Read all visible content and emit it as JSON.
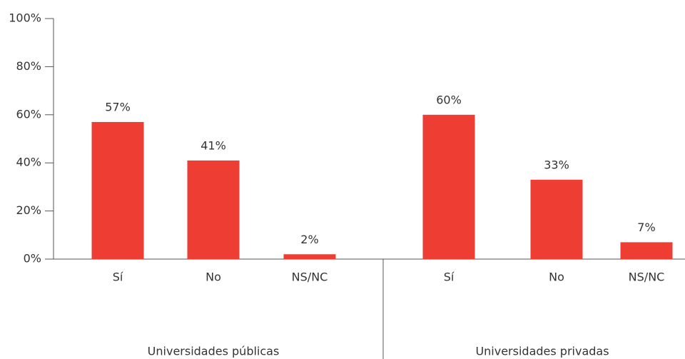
{
  "chart_data": {
    "type": "bar",
    "categories": [
      "Sí",
      "No",
      "NS/NC",
      "Sí",
      "No",
      "NS/NC"
    ],
    "groups": [
      "Universidades públicas",
      "Universidades privadas"
    ],
    "values": [
      57,
      41,
      2,
      60,
      33,
      7
    ],
    "value_labels": [
      "57%",
      "41%",
      "2%",
      "60%",
      "33%",
      "7%"
    ],
    "color": "#ee3e33",
    "ylim": [
      0,
      100
    ],
    "yticks": [
      {
        "value": 0,
        "label": "0%"
      },
      {
        "value": 20,
        "label": "20%"
      },
      {
        "value": 40,
        "label": "40%"
      },
      {
        "value": 60,
        "label": "60%"
      },
      {
        "value": 80,
        "label": "80%"
      },
      {
        "value": 100,
        "label": "100%"
      }
    ],
    "grid": false
  }
}
